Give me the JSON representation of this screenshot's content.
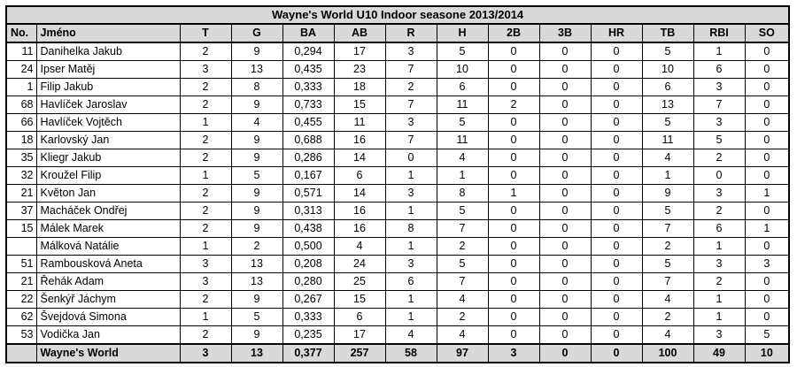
{
  "title": "Wayne's World U10  Indoor seasone 2013/2014",
  "columns": [
    "No.",
    "Jméno",
    "T",
    "G",
    "BA",
    "AB",
    "R",
    "H",
    "2B",
    "3B",
    "HR",
    "TB",
    "RBI",
    "SO"
  ],
  "rows": [
    {
      "no": "11",
      "name": "Danihelka Jakub",
      "vals": [
        "2",
        "9",
        "0,294",
        "17",
        "3",
        "5",
        "0",
        "0",
        "0",
        "5",
        "1",
        "0"
      ]
    },
    {
      "no": "24",
      "name": "Ipser Matěj",
      "vals": [
        "3",
        "13",
        "0,435",
        "23",
        "7",
        "10",
        "0",
        "0",
        "0",
        "10",
        "6",
        "0"
      ]
    },
    {
      "no": "1",
      "name": "Filip Jakub",
      "vals": [
        "2",
        "8",
        "0,333",
        "18",
        "2",
        "6",
        "0",
        "0",
        "0",
        "6",
        "3",
        "0"
      ]
    },
    {
      "no": "68",
      "name": "Havlíček Jaroslav",
      "vals": [
        "2",
        "9",
        "0,733",
        "15",
        "7",
        "11",
        "2",
        "0",
        "0",
        "13",
        "7",
        "0"
      ]
    },
    {
      "no": "66",
      "name": "Havlíček Vojtěch",
      "vals": [
        "1",
        "4",
        "0,455",
        "11",
        "3",
        "5",
        "0",
        "0",
        "0",
        "5",
        "3",
        "0"
      ]
    },
    {
      "no": "18",
      "name": "Karlovský Jan",
      "vals": [
        "2",
        "9",
        "0,688",
        "16",
        "7",
        "11",
        "0",
        "0",
        "0",
        "11",
        "5",
        "0"
      ]
    },
    {
      "no": "35",
      "name": "Kliegr Jakub",
      "vals": [
        "2",
        "9",
        "0,286",
        "14",
        "0",
        "4",
        "0",
        "0",
        "0",
        "4",
        "2",
        "0"
      ]
    },
    {
      "no": "32",
      "name": "Kroužel Filip",
      "vals": [
        "1",
        "5",
        "0,167",
        "6",
        "1",
        "1",
        "0",
        "0",
        "0",
        "1",
        "0",
        "0"
      ]
    },
    {
      "no": "21",
      "name": "Květon Jan",
      "vals": [
        "2",
        "9",
        "0,571",
        "14",
        "3",
        "8",
        "1",
        "0",
        "0",
        "9",
        "3",
        "1"
      ]
    },
    {
      "no": "37",
      "name": "Macháček Ondřej",
      "vals": [
        "2",
        "9",
        "0,313",
        "16",
        "1",
        "5",
        "0",
        "0",
        "0",
        "5",
        "2",
        "0"
      ]
    },
    {
      "no": "15",
      "name": "Málek Marek",
      "vals": [
        "2",
        "9",
        "0,438",
        "16",
        "8",
        "7",
        "0",
        "0",
        "0",
        "7",
        "6",
        "1"
      ]
    },
    {
      "no": "",
      "name": "Málková Natálie",
      "vals": [
        "1",
        "2",
        "0,500",
        "4",
        "1",
        "2",
        "0",
        "0",
        "0",
        "2",
        "1",
        "0"
      ]
    },
    {
      "no": "51",
      "name": "Rambousková Aneta",
      "vals": [
        "3",
        "13",
        "0,208",
        "24",
        "3",
        "5",
        "0",
        "0",
        "0",
        "5",
        "3",
        "3"
      ]
    },
    {
      "no": "21",
      "name": "Řehák Adam",
      "vals": [
        "3",
        "13",
        "0,280",
        "25",
        "6",
        "7",
        "0",
        "0",
        "0",
        "7",
        "2",
        "0"
      ]
    },
    {
      "no": "22",
      "name": "Šenkýř Jáchym",
      "vals": [
        "2",
        "9",
        "0,267",
        "15",
        "1",
        "4",
        "0",
        "0",
        "0",
        "4",
        "1",
        "0"
      ]
    },
    {
      "no": "62",
      "name": "Švejdová Simona",
      "vals": [
        "1",
        "5",
        "0,333",
        "6",
        "1",
        "2",
        "0",
        "0",
        "0",
        "2",
        "1",
        "0"
      ]
    },
    {
      "no": "53",
      "name": "Vodička Jan",
      "vals": [
        "2",
        "9",
        "0,235",
        "17",
        "4",
        "4",
        "0",
        "0",
        "0",
        "4",
        "3",
        "5"
      ]
    }
  ],
  "total": {
    "no": "",
    "name": "Wayne's World",
    "vals": [
      "3",
      "13",
      "0,377",
      "257",
      "58",
      "97",
      "3",
      "0",
      "0",
      "100",
      "49",
      "10"
    ]
  }
}
